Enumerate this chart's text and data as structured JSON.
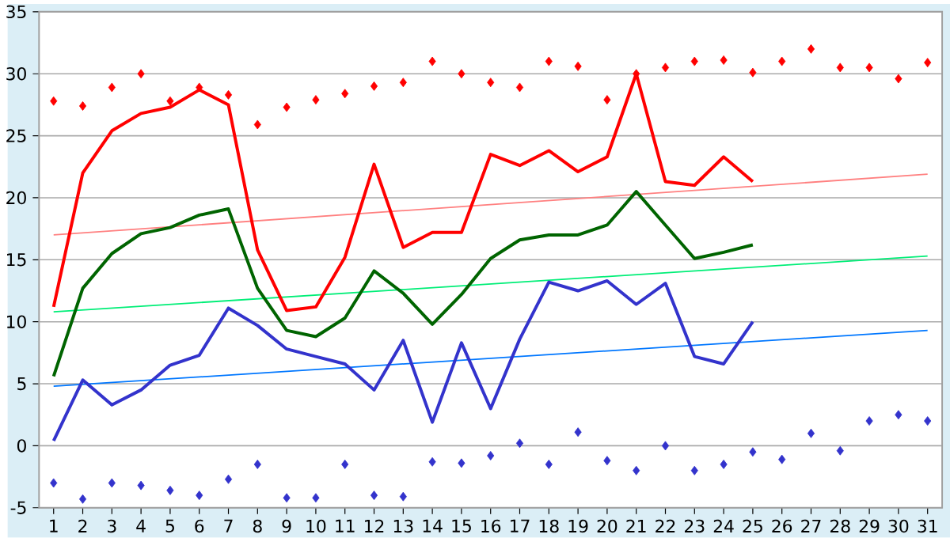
{
  "chart_data": {
    "type": "line",
    "x": [
      1,
      2,
      3,
      4,
      5,
      6,
      7,
      8,
      9,
      10,
      11,
      12,
      13,
      14,
      15,
      16,
      17,
      18,
      19,
      20,
      21,
      22,
      23,
      24,
      25
    ],
    "xlim": [
      0.5,
      31.5
    ],
    "xticks": [
      1,
      2,
      3,
      4,
      5,
      6,
      7,
      8,
      9,
      10,
      11,
      12,
      13,
      14,
      15,
      16,
      17,
      18,
      19,
      20,
      21,
      22,
      23,
      24,
      25,
      26,
      27,
      28,
      29,
      30,
      31
    ],
    "ylim": [
      -5,
      35
    ],
    "yticks": [
      -5,
      0,
      5,
      10,
      15,
      20,
      25,
      30,
      35
    ],
    "grid": "y",
    "line_style": "solid",
    "series": [
      {
        "type": "scatter",
        "marker": "diamond",
        "color": "#ff0000",
        "x": [
          1,
          2,
          3,
          4,
          5,
          6,
          7,
          8,
          9,
          10,
          11,
          12,
          13,
          14,
          15,
          16,
          17,
          18,
          19,
          20,
          21,
          22,
          23,
          24,
          25,
          26,
          27,
          28,
          29,
          30,
          31
        ],
        "values": [
          27.8,
          27.4,
          28.9,
          30,
          27.8,
          28.9,
          28.3,
          25.9,
          27.3,
          27.9,
          28.4,
          29,
          29.3,
          31,
          30,
          29.3,
          28.9,
          31,
          30.6,
          27.9,
          30,
          30.5,
          31,
          31.1,
          30.1,
          31,
          32,
          30.5,
          30.5,
          29.6,
          30.9
        ]
      },
      {
        "type": "scatter",
        "marker": "diamond",
        "color": "#3333cc",
        "x": [
          1,
          2,
          3,
          4,
          5,
          6,
          7,
          8,
          9,
          10,
          11,
          12,
          13,
          14,
          15,
          16,
          17,
          18,
          19,
          20,
          21,
          22,
          23,
          24,
          25,
          26,
          27,
          28,
          29,
          30,
          31
        ],
        "values": [
          -3,
          -4.3,
          -3,
          -3.2,
          -3.6,
          -4,
          -2.7,
          -1.5,
          -4.2,
          -4.2,
          -1.5,
          -4,
          -4.1,
          -1.3,
          -1.4,
          -0.8,
          0.2,
          -1.5,
          1.1,
          -1.2,
          -2,
          0,
          -2,
          -1.5,
          -0.5,
          -1.1,
          1,
          -0.4,
          2,
          2.5,
          2
        ]
      },
      {
        "type": "line",
        "color": "#ff8080",
        "x": [
          1,
          31
        ],
        "values": [
          17,
          21.9
        ]
      },
      {
        "type": "line",
        "color": "#00ee77",
        "x": [
          1,
          31
        ],
        "values": [
          10.8,
          15.3
        ]
      },
      {
        "type": "line",
        "color": "#0077ff",
        "x": [
          1,
          31
        ],
        "values": [
          4.8,
          9.3
        ]
      },
      {
        "color": "#ff0000",
        "values": [
          11.2,
          22,
          25.4,
          26.8,
          27.3,
          28.7,
          27.5,
          15.8,
          10.9,
          11.2,
          15.2,
          22.7,
          16,
          17.2,
          17.2,
          23.5,
          22.6,
          23.8,
          22.1,
          23.3,
          30,
          21.3,
          21,
          23.3,
          21.3
        ]
      },
      {
        "color": "#006400",
        "values": [
          5.6,
          12.7,
          15.5,
          17.1,
          17.6,
          18.6,
          19.1,
          12.7,
          9.3,
          8.8,
          10.3,
          14.1,
          12.3,
          9.8,
          12.2,
          15.1,
          16.6,
          17,
          17,
          17.8,
          20.5,
          17.8,
          15.1,
          15.6,
          16.2
        ]
      },
      {
        "color": "#3333cc",
        "values": [
          0.4,
          5.3,
          3.3,
          4.5,
          6.5,
          7.3,
          11.1,
          9.7,
          7.8,
          7.2,
          6.6,
          4.5,
          8.5,
          1.9,
          8.3,
          3,
          8.6,
          13.2,
          12.5,
          13.3,
          11.4,
          13.1,
          7.2,
          6.6,
          10
        ]
      }
    ]
  }
}
